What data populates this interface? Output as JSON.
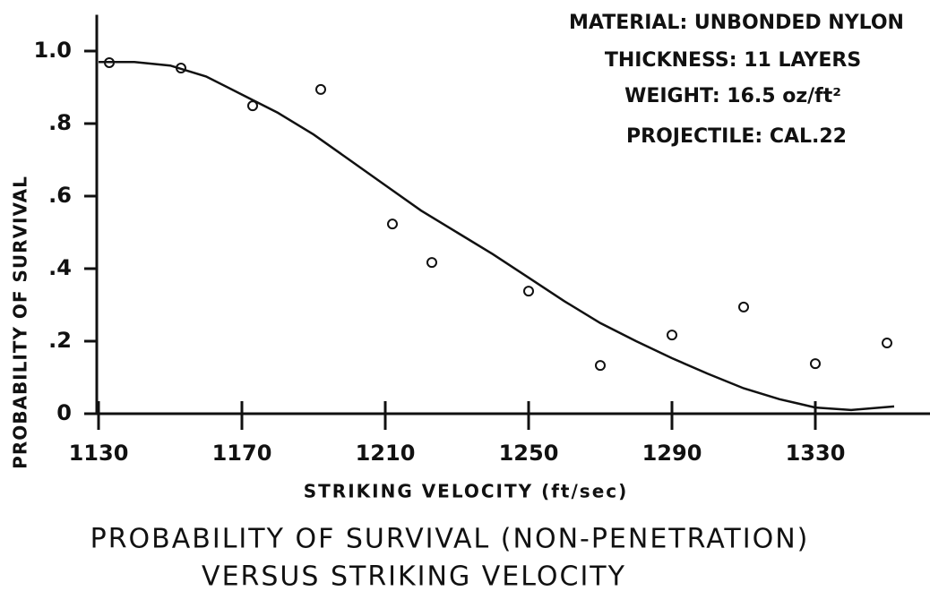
{
  "chart_data": {
    "type": "scatter",
    "title": [
      "PROBABILITY OF SURVIVAL (NON-PENETRATION)",
      "VERSUS STRIKING VELOCITY"
    ],
    "x_label": "STRIKING VELOCITY (ft/sec)",
    "y_label": "PROBABILITY OF SURVIVAL",
    "annotations": [
      "MATERIAL: UNBONDED NYLON",
      "THICKNESS: 11 LAYERS",
      "WEIGHT: 16.5 oz/ft²",
      "PROJECTILE: CAL.22"
    ],
    "series": [
      {
        "type": "scatter",
        "color": "#111111",
        "x": [
          1133,
          1153,
          1173,
          1192,
          1212,
          1223,
          1250,
          1270,
          1290,
          1310,
          1330,
          1350
        ],
        "values": [
          0.968,
          0.953,
          0.849,
          0.894,
          0.523,
          0.417,
          0.338,
          0.133,
          0.217,
          0.294,
          0.138,
          0.195
        ]
      },
      {
        "type": "line",
        "color": "#111111",
        "x": [
          1130,
          1140,
          1150,
          1160,
          1170,
          1180,
          1190,
          1200,
          1210,
          1220,
          1230,
          1240,
          1250,
          1260,
          1270,
          1280,
          1290,
          1300,
          1310,
          1320,
          1330,
          1340,
          1352
        ],
        "values": [
          0.97,
          0.97,
          0.96,
          0.93,
          0.88,
          0.83,
          0.77,
          0.7,
          0.63,
          0.56,
          0.5,
          0.44,
          0.375,
          0.31,
          0.25,
          0.2,
          0.153,
          0.11,
          0.07,
          0.04,
          0.017,
          0.01,
          0.02
        ]
      }
    ],
    "xlim": [
      1126,
      1358
    ],
    "xticks": [
      1130,
      1170,
      1210,
      1250,
      1290,
      1330
    ],
    "ylim": [
      0,
      1.1
    ],
    "yticks": [
      0,
      {
        "value": 0.2,
        "label": ".2"
      },
      {
        "value": 0.4,
        "label": ".4"
      },
      {
        "value": 0.6,
        "label": ".6"
      },
      {
        "value": 0.8,
        "label": ".8"
      },
      {
        "value": 1,
        "label": "1.0"
      }
    ]
  }
}
